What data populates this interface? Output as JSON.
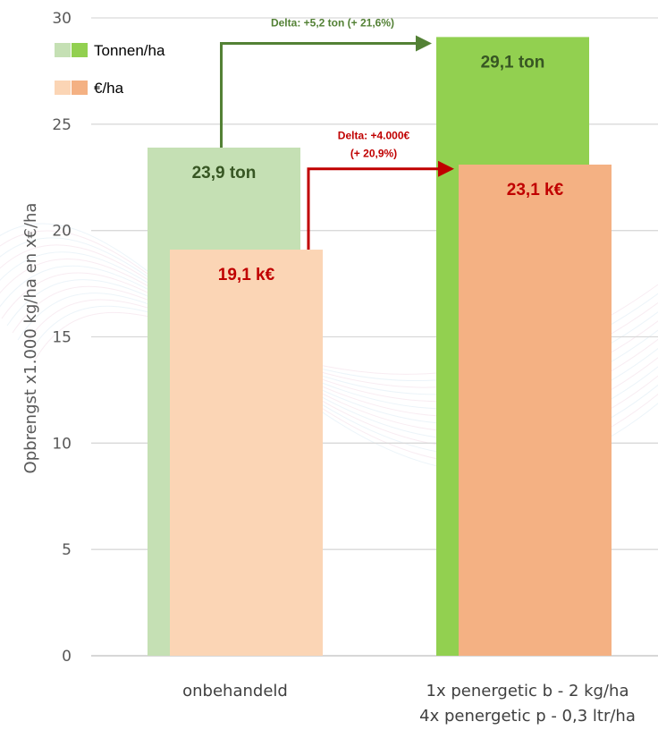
{
  "chart_data": {
    "type": "bar",
    "categories": [
      [
        "onbehandeld"
      ],
      [
        "1x penergetic b - 2 kg/ha",
        "4x penergetic p - 0,3 ltr/ha"
      ]
    ],
    "series": [
      {
        "name": "Tonnen/ha",
        "values": [
          23.9,
          29.1
        ],
        "labels": [
          "23,9 ton",
          "29,1 ton"
        ],
        "colors": [
          "#c5e0b4",
          "#92d050"
        ],
        "label_color": "#375623"
      },
      {
        "name": "€/ha",
        "values": [
          19.1,
          23.1
        ],
        "labels": [
          "19,1 k€",
          "23,1 k€"
        ],
        "colors": [
          "#fbd5b5",
          "#f4b183"
        ],
        "label_color": "#c00000"
      }
    ],
    "ylabel": "Opbrengst x1.000 kg/ha en x€/ha",
    "ylim": [
      0,
      30
    ],
    "yticks": [
      0,
      5,
      10,
      15,
      20,
      25,
      30
    ],
    "grid": true,
    "legend_position": "top-left",
    "annotations": [
      {
        "text": [
          "Delta: +5,2 ton (+ 21,6%)"
        ],
        "color": "#538135"
      },
      {
        "text": [
          "Delta: +4.000€",
          "(+ 20,9%)"
        ],
        "color": "#c00000"
      }
    ]
  }
}
